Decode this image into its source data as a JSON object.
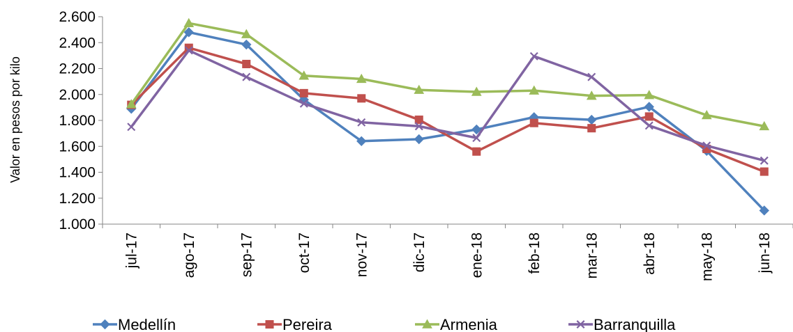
{
  "chart_data": {
    "type": "line",
    "title": "",
    "xlabel": "",
    "ylabel": "Valor en pesos por kilo",
    "ylim": [
      1000,
      2600
    ],
    "yticks": [
      1000,
      1200,
      1400,
      1600,
      1800,
      2000,
      2200,
      2400,
      2600
    ],
    "ytick_labels": [
      "1.000",
      "1.200",
      "1.400",
      "1.600",
      "1.800",
      "2.000",
      "2.200",
      "2.400",
      "2.600"
    ],
    "categories": [
      "jul-17",
      "ago-17",
      "sep-17",
      "oct-17",
      "nov-17",
      "dic-17",
      "ene-18",
      "feb-18",
      "mar-18",
      "abr-18",
      "may-18",
      "jun-18"
    ],
    "grid": false,
    "legend_position": "bottom",
    "series": [
      {
        "name": "Medellín",
        "color": "#4F81BD",
        "marker": "diamond",
        "values": [
          1890,
          2480,
          2385,
          1960,
          1640,
          1655,
          1730,
          1825,
          1805,
          1905,
          1565,
          1105
        ]
      },
      {
        "name": "Pereira",
        "color": "#C0504D",
        "marker": "square",
        "values": [
          1920,
          2360,
          2235,
          2010,
          1970,
          1805,
          1560,
          1780,
          1740,
          1830,
          1580,
          1405
        ]
      },
      {
        "name": "Armenia",
        "color": "#9BBB59",
        "marker": "triangle",
        "values": [
          1925,
          2550,
          2465,
          2145,
          2120,
          2035,
          2020,
          2030,
          1990,
          1995,
          1840,
          1755
        ]
      },
      {
        "name": "Barranquilla",
        "color": "#8064A2",
        "marker": "x",
        "values": [
          1750,
          2340,
          2135,
          1930,
          1785,
          1755,
          1665,
          2295,
          2135,
          1760,
          1605,
          1490
        ]
      }
    ]
  }
}
